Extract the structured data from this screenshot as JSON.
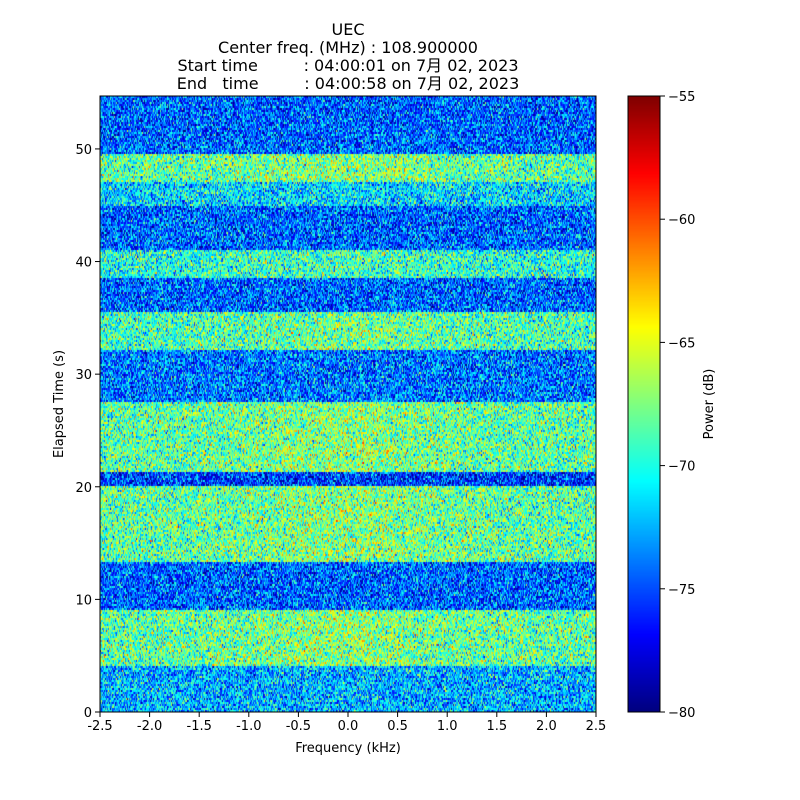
{
  "chart_data": {
    "type": "heatmap",
    "title_lines": [
      "UEC",
      "Center freq. (MHz) : 108.900000",
      "Start time         : 04:00:01 on 7月 02, 2023",
      "End   time         : 04:00:58 on 7月 02, 2023"
    ],
    "xlabel": "Frequency (kHz)",
    "ylabel": "Elapsed Time (s)",
    "xlim": [
      -2.5,
      2.5
    ],
    "ylim": [
      0,
      54.7
    ],
    "x_ticks": [
      -2.5,
      -2.0,
      -1.5,
      -1.0,
      -0.5,
      0.0,
      0.5,
      1.0,
      1.5,
      2.0,
      2.5
    ],
    "x_tick_labels": [
      "-2.5",
      "-2.0",
      "-1.5",
      "-1.0",
      "-0.5",
      "0.0",
      "0.5",
      "1.0",
      "1.5",
      "2.0",
      "2.5"
    ],
    "y_ticks": [
      0,
      10,
      20,
      30,
      40,
      50
    ],
    "y_tick_labels": [
      "0",
      "10",
      "20",
      "30",
      "40",
      "50"
    ],
    "colormap": "jet",
    "colorbar": {
      "label": "Power (dB)",
      "vmin": -80,
      "vmax": -55,
      "ticks": [
        -80,
        -75,
        -70,
        -65,
        -60,
        -55
      ],
      "tick_labels": [
        "−80",
        "−75",
        "−70",
        "−65",
        "−60",
        "−55"
      ]
    },
    "time_bands": [
      {
        "t_start": 0.0,
        "t_end": 4.0,
        "mean_db": -72.5
      },
      {
        "t_start": 4.0,
        "t_end": 9.0,
        "mean_db": -68.5
      },
      {
        "t_start": 9.0,
        "t_end": 13.3,
        "mean_db": -74.5
      },
      {
        "t_start": 13.3,
        "t_end": 20.0,
        "mean_db": -68.5
      },
      {
        "t_start": 20.0,
        "t_end": 21.3,
        "mean_db": -75.5
      },
      {
        "t_start": 21.3,
        "t_end": 27.6,
        "mean_db": -68.5
      },
      {
        "t_start": 27.6,
        "t_end": 32.2,
        "mean_db": -74.0
      },
      {
        "t_start": 32.2,
        "t_end": 35.6,
        "mean_db": -69.0
      },
      {
        "t_start": 35.6,
        "t_end": 38.6,
        "mean_db": -74.5
      },
      {
        "t_start": 38.6,
        "t_end": 41.1,
        "mean_db": -70.0
      },
      {
        "t_start": 41.1,
        "t_end": 45.0,
        "mean_db": -74.5
      },
      {
        "t_start": 45.0,
        "t_end": 47.0,
        "mean_db": -71.5
      },
      {
        "t_start": 47.0,
        "t_end": 49.6,
        "mean_db": -68.5
      },
      {
        "t_start": 49.6,
        "t_end": 54.7,
        "mean_db": -74.5
      }
    ]
  }
}
